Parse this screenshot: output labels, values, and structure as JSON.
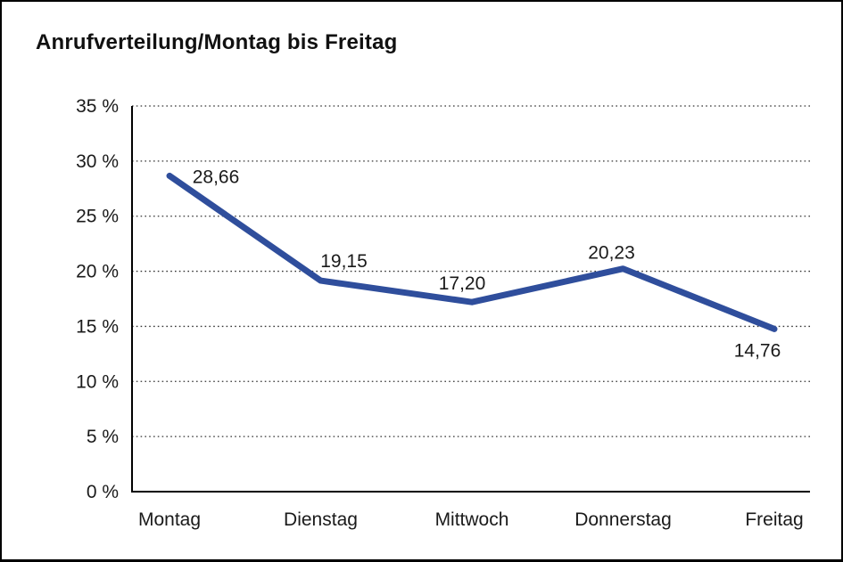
{
  "chart_data": {
    "type": "line",
    "title": "Anrufverteilung/Montag bis Freitag",
    "categories": [
      "Montag",
      "Dienstag",
      "Mittwoch",
      "Donnerstag",
      "Freitag"
    ],
    "values": [
      28.66,
      19.15,
      17.2,
      20.23,
      14.76
    ],
    "value_labels": [
      "28,66",
      "19,15",
      "17,20",
      "20,23",
      "14,76"
    ],
    "y_ticks": [
      {
        "label": "0 %",
        "value": 0
      },
      {
        "label": "5 %",
        "value": 5
      },
      {
        "label": "10 %",
        "value": 10
      },
      {
        "label": "15 %",
        "value": 15
      },
      {
        "label": "20 %",
        "value": 20
      },
      {
        "label": "25 %",
        "value": 25
      },
      {
        "label": "30 %",
        "value": 30
      },
      {
        "label": "35 %",
        "value": 35
      }
    ],
    "ylim": [
      0,
      35
    ],
    "xlabel": "",
    "ylabel": "",
    "grid": "horizontal-dotted",
    "legend": "none",
    "colors": {
      "line": "#2F4E9C",
      "axis": "#000000",
      "gridline": "#333333",
      "text": "#1a1a1a"
    }
  }
}
